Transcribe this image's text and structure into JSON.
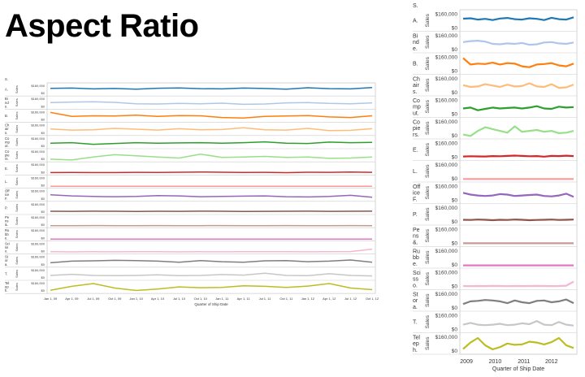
{
  "slide": {
    "title": "Aspect Ratio"
  },
  "colors": {
    "A": "#1f77b4",
    "Binders": "#aec7e8",
    "Bookcases": "#ff7f0e",
    "Chairs": "#ffbb78",
    "Computers": "#2ca02c",
    "Copiers": "#98df8a",
    "Envelopes": "#d62728",
    "Labels": "#ff9896",
    "OfficeFurnishings": "#9467bd",
    "Paper": "#8c564b",
    "Pens": "#c49c94",
    "Rubber": "#e377c2",
    "Scissors": "#f7b6d2",
    "Storage": "#7f7f7f",
    "Tables": "#c7c7c7",
    "Telephones": "#bcbd22"
  },
  "chart_data": [
    {
      "type": "line",
      "id": "wide",
      "row_header": "S.",
      "ylabel": "Sales",
      "yticks": [
        "$160,000",
        "$0"
      ],
      "ylim": [
        0,
        180000
      ],
      "xlabel": "Quarter of Ship Date",
      "x": [
        "Jan 1, 09",
        "Apr 1, 09",
        "Jul 1, 09",
        "Oct 1, 09",
        "Jan 1, 10",
        "Apr 1, 10",
        "Jul 1, 10",
        "Oct 1, 10",
        "Jan 1, 11",
        "Apr 1, 11",
        "Jul 1, 11",
        "Oct 1, 11",
        "Jan 1, 12",
        "Apr 1, 12",
        "Jul 1, 12",
        "Oct 1, 12"
      ],
      "series": [
        {
          "name": "A.",
          "values": [
            110000,
            115000,
            100000,
            108000,
            95000,
            112000,
            118000,
            105000,
            100000,
            115000,
            108000,
            95000,
            120000,
            105000,
            100000,
            125000
          ]
        },
        {
          "name": "Bi nd e.",
          "values": [
            90000,
            100000,
            105000,
            95000,
            70000,
            65000,
            75000,
            70000,
            80000,
            60000,
            65000,
            85000,
            90000,
            75000,
            70000,
            85000
          ]
        },
        {
          "name": "B.",
          "values": [
            150000,
            80000,
            90000,
            85000,
            100000,
            80000,
            95000,
            90000,
            60000,
            50000,
            80000,
            85000,
            95000,
            70000,
            60000,
            90000
          ]
        },
        {
          "name": "Ch air s.",
          "values": [
            90000,
            70000,
            75000,
            100000,
            85000,
            70000,
            95000,
            75000,
            80000,
            110000,
            75000,
            70000,
            100000,
            60000,
            65000,
            95000
          ]
        },
        {
          "name": "Co mp ut.",
          "values": [
            70000,
            80000,
            50000,
            65000,
            80000,
            70000,
            75000,
            80000,
            70000,
            80000,
            95000,
            70000,
            65000,
            90000,
            80000,
            85000
          ]
        },
        {
          "name": "Co pie rs.",
          "values": [
            20000,
            5000,
            60000,
            100000,
            80000,
            60000,
            40000,
            110000,
            50000,
            60000,
            70000,
            50000,
            60000,
            35000,
            40000,
            60000
          ]
        },
        {
          "name": "E.",
          "values": [
            15000,
            18000,
            16000,
            15000,
            20000,
            18000,
            22000,
            25000,
            22000,
            18000,
            20000,
            14000,
            22000,
            20000,
            24000,
            20000
          ]
        },
        {
          "name": "L.",
          "values": [
            5000,
            5000,
            5000,
            5000,
            5000,
            5000,
            5000,
            5000,
            5000,
            5000,
            5000,
            5000,
            5000,
            5000,
            5000,
            5000
          ]
        },
        {
          "name": "Off ice F.",
          "values": [
            90000,
            70000,
            60000,
            55000,
            60000,
            75000,
            70000,
            55000,
            60000,
            65000,
            70000,
            55000,
            50000,
            60000,
            80000,
            45000
          ]
        },
        {
          "name": "P.",
          "values": [
            30000,
            28000,
            32000,
            30000,
            25000,
            30000,
            28000,
            32000,
            30000,
            25000,
            28000,
            30000,
            32000,
            28000,
            30000,
            32000
          ]
        },
        {
          "name": "Pe ns &.",
          "values": [
            8000,
            8000,
            9000,
            8000,
            8000,
            9000,
            8000,
            8000,
            9000,
            8000,
            8000,
            9000,
            8000,
            8000,
            9000,
            8000
          ]
        },
        {
          "name": "Ru bb e.",
          "values": [
            2000,
            2000,
            2000,
            2000,
            2000,
            2000,
            2000,
            2000,
            2000,
            2000,
            2000,
            2000,
            2000,
            2000,
            2000,
            2000
          ]
        },
        {
          "name": "Sci ss o.",
          "values": [
            12000,
            10000,
            12000,
            11000,
            13000,
            12000,
            10000,
            12000,
            11000,
            12000,
            13000,
            12000,
            11000,
            12000,
            15000,
            60000
          ]
        },
        {
          "name": "St or a.",
          "values": [
            50000,
            80000,
            85000,
            95000,
            90000,
            80000,
            60000,
            90000,
            70000,
            60000,
            85000,
            90000,
            70000,
            80000,
            100000,
            60000
          ]
        },
        {
          "name": "T.",
          "values": [
            60000,
            80000,
            60000,
            55000,
            60000,
            70000,
            55000,
            60000,
            75000,
            65000,
            100000,
            60000,
            55000,
            90000,
            60000,
            50000
          ]
        },
        {
          "name": "Tel ep h.",
          "values": [
            30000,
            100000,
            150000,
            70000,
            25000,
            50000,
            90000,
            75000,
            80000,
            110000,
            100000,
            80000,
            105000,
            150000,
            70000,
            40000
          ]
        }
      ]
    },
    {
      "type": "line",
      "id": "narrow",
      "row_header": "S.",
      "ylabel": "Sales",
      "yticks": [
        "$160,000",
        "$0"
      ],
      "ylim": [
        0,
        180000
      ],
      "xlabel": "Quarter of Ship Date",
      "xticks": [
        "2009",
        "2010",
        "2011",
        "2012"
      ]
    }
  ]
}
